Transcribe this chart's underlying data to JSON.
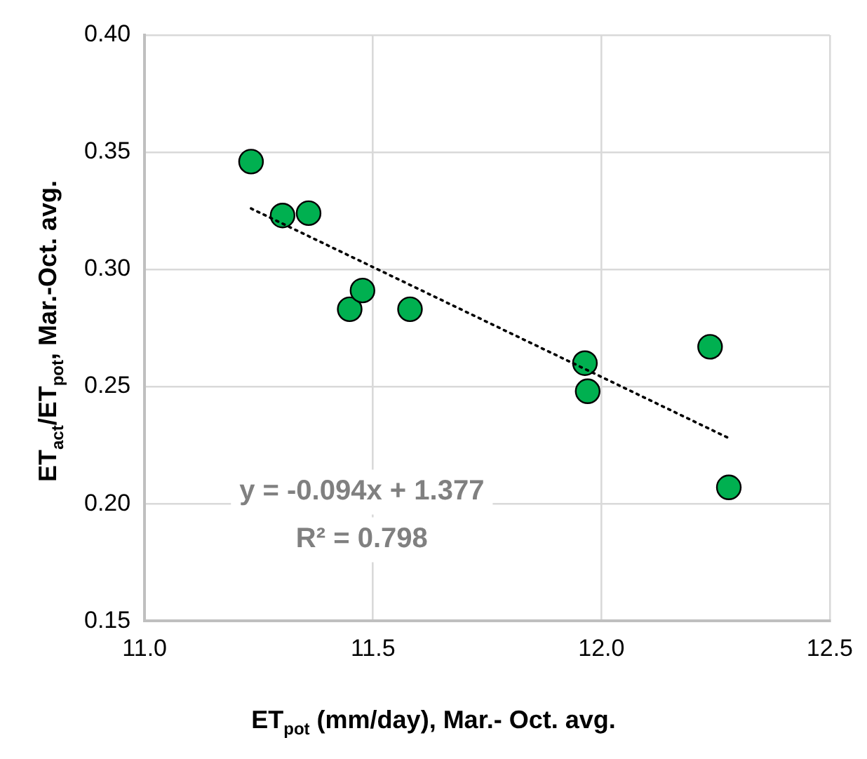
{
  "chart_data": {
    "type": "scatter",
    "xlabel": "ET$_{pot}$ (mm/day), Mar.- Oct. avg.",
    "ylabel": "ET$_{act}$/ET$_{pot}$, Mar.-Oct. avg.",
    "series": [
      {
        "color": "#00b050",
        "marker": "circle",
        "x": [
          11.233,
          11.302,
          11.359,
          11.449,
          11.477,
          11.581,
          11.964,
          11.97,
          12.238,
          12.279
        ],
        "values": [
          0.346,
          0.323,
          0.324,
          0.283,
          0.291,
          0.283,
          0.26,
          0.248,
          0.267,
          0.207
        ]
      },
      {
        "type": "line",
        "color": "#000000",
        "line_style": "dotted",
        "marker": "none",
        "x": [
          11.233,
          12.279
        ],
        "values": [
          0.326,
          0.228
        ]
      }
    ],
    "annotations": [
      "y = -0.094x + 1.377",
      "R² = 0.798"
    ],
    "xlim": [
      11.0,
      12.5
    ],
    "xticks": [
      {
        "value": 11.0,
        "label": "11.0"
      },
      {
        "value": 11.5,
        "label": "11.5"
      },
      {
        "value": 12.0,
        "label": "12.0"
      },
      {
        "value": 12.5,
        "label": "12.5"
      }
    ],
    "ylim": [
      0.15,
      0.4
    ],
    "yticks": [
      {
        "value": 0.15,
        "label": "0.15"
      },
      {
        "value": 0.2,
        "label": "0.20"
      },
      {
        "value": 0.25,
        "label": "0.25"
      },
      {
        "value": 0.3,
        "label": "0.30"
      },
      {
        "value": 0.35,
        "label": "0.35"
      },
      {
        "value": 0.4,
        "label": "0.40"
      }
    ],
    "grid": true,
    "legend": false
  }
}
